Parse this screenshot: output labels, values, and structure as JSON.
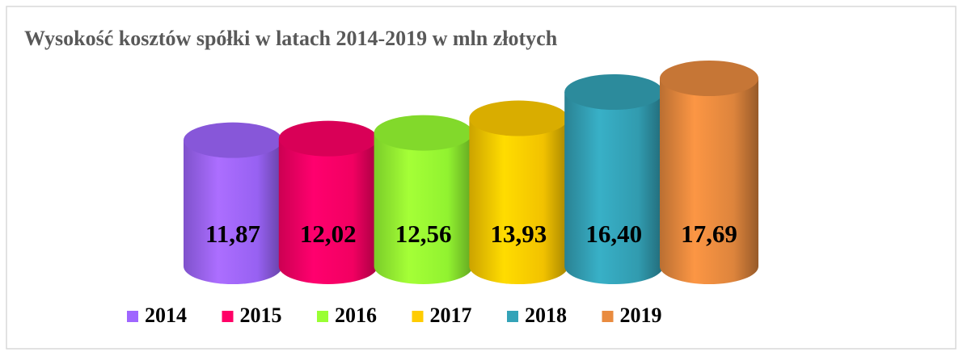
{
  "chart_data": {
    "type": "cylinder",
    "title": "Wysokość kosztów spółki w latach 2014-2019 w mln złotych",
    "categories": [
      "2014",
      "2015",
      "2016",
      "2017",
      "2018",
      "2019"
    ],
    "values": [
      11.87,
      12.02,
      12.56,
      13.93,
      16.4,
      17.69
    ],
    "value_labels": [
      "11,87",
      "12,02",
      "12,56",
      "13,93",
      "16,40",
      "17,69"
    ],
    "colors": [
      "#9f66ff",
      "#ff0066",
      "#99ff33",
      "#ffcc00",
      "#34a3b8",
      "#e98b3f"
    ],
    "legend": "bottom"
  }
}
